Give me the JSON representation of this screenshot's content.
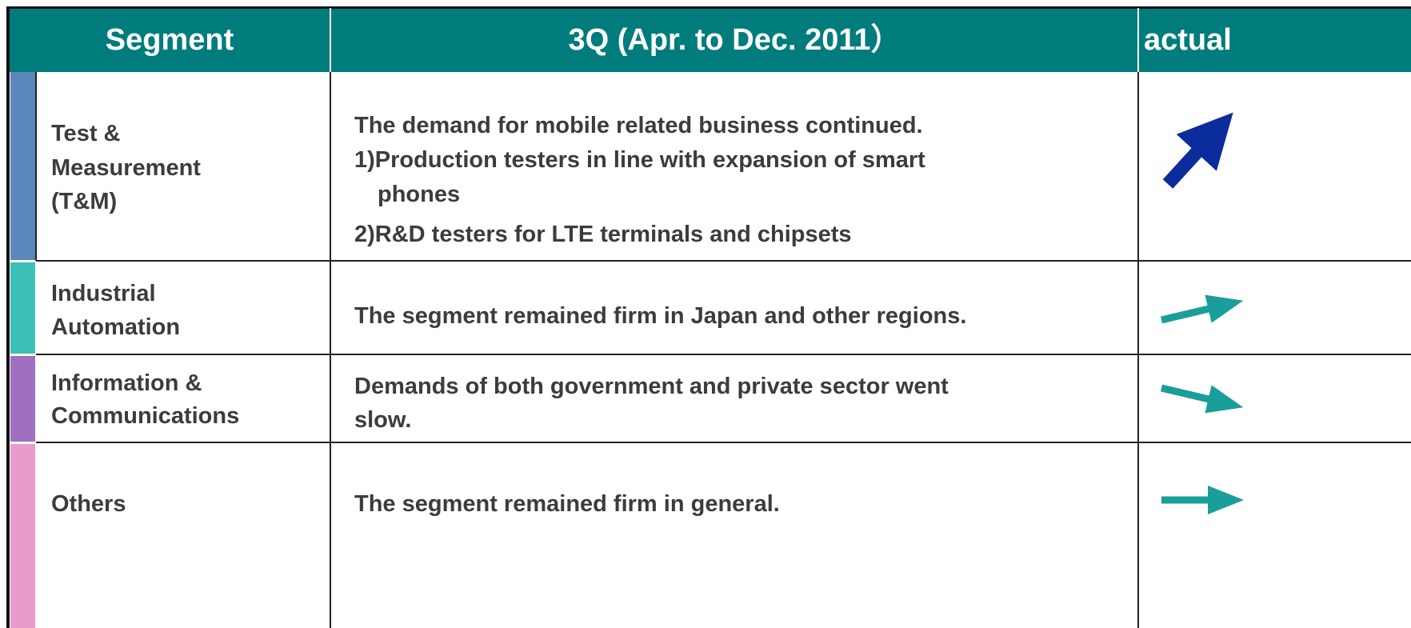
{
  "table": {
    "header": [
      "Segment",
      "3Q (Apr. to Dec. 2011）",
      "actual"
    ],
    "rows": [
      {
        "segment": [
          "Test &",
          "Measurement",
          "(T&M)"
        ],
        "description": [
          "The demand for mobile related business continued.",
          "1)Production testers in line with expansion of smart",
          "phones",
          "2)R&D testers for LTE terminals and chipsets"
        ]
      },
      {
        "segment": [
          "Industrial",
          "Automation"
        ],
        "description": [
          "The segment remained firm in Japan and other regions."
        ]
      },
      {
        "segment": [
          "Information &",
          "Communications"
        ],
        "description": [
          "Demands of both government and private sector went",
          "slow."
        ]
      },
      {
        "segment": [
          "Others"
        ],
        "description": [
          "The segment remained firm in general."
        ]
      }
    ]
  }
}
